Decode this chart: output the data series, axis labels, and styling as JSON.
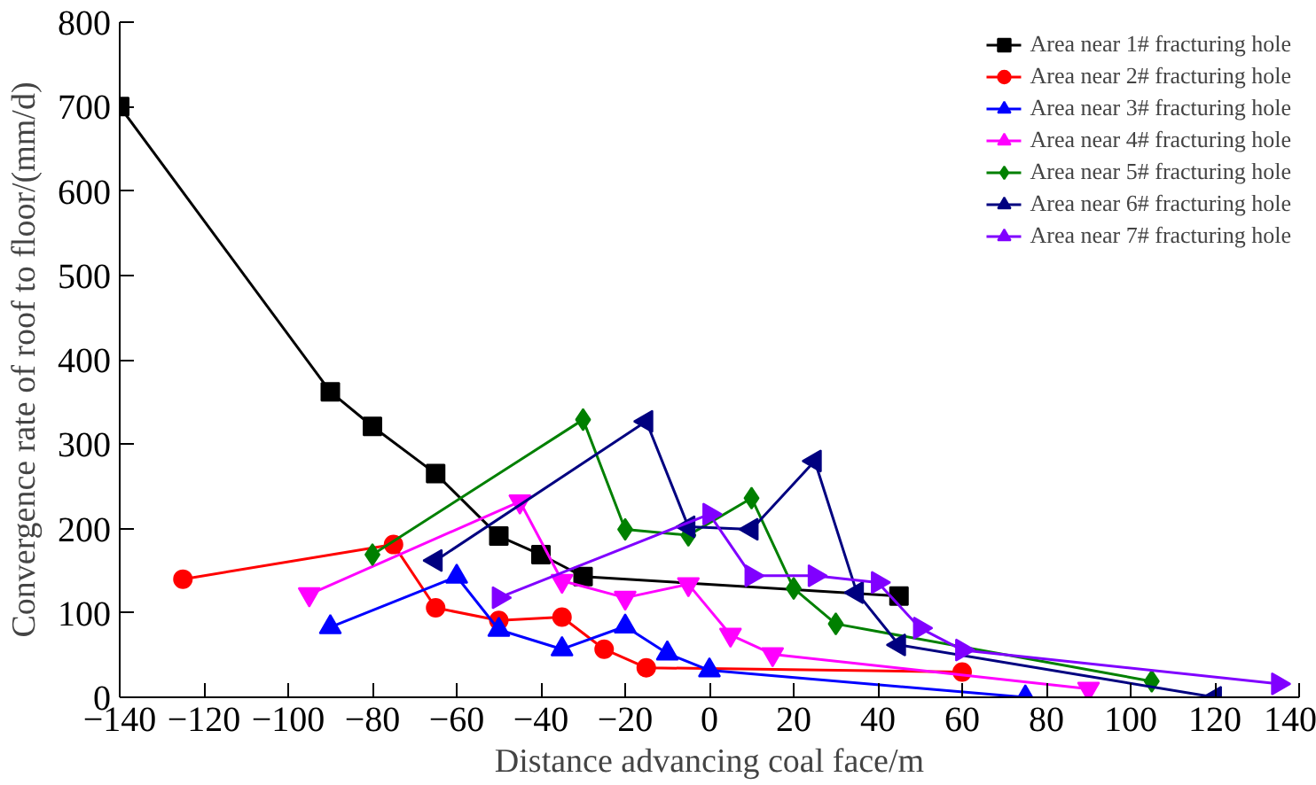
{
  "chart_data": {
    "type": "line",
    "xlabel": "Distance advancing coal face/m",
    "ylabel": "Convergence rate of roof to floor/(mm/d)",
    "xlim": [
      -140,
      140
    ],
    "ylim": [
      0,
      800
    ],
    "xticks": [
      -140,
      -120,
      -100,
      -80,
      -60,
      -40,
      -20,
      0,
      20,
      40,
      60,
      80,
      100,
      120,
      140
    ],
    "yticks": [
      0,
      100,
      200,
      300,
      400,
      500,
      600,
      700,
      800
    ],
    "grid": false,
    "legend": "top right",
    "series": [
      {
        "name": "Area near 1# fracturing hole",
        "color": "#000000",
        "marker": "square",
        "x": [
          -140,
          -90,
          -80,
          -65,
          -50,
          -40,
          -30,
          45
        ],
        "values": [
          700,
          362,
          321,
          265,
          191,
          169,
          143,
          120
        ]
      },
      {
        "name": "Area near 2# fracturing hole",
        "color": "#ff0000",
        "marker": "circle",
        "x": [
          -125,
          -75,
          -65,
          -50,
          -35,
          -25,
          -15,
          60
        ],
        "values": [
          140,
          181,
          106,
          91,
          95,
          57,
          35,
          30
        ]
      },
      {
        "name": "Area near 3# fracturing hole",
        "color": "#0000ff",
        "marker": "triangle",
        "x": [
          -90,
          -60,
          -50,
          -35,
          -20,
          -10,
          0,
          75
        ],
        "values": [
          83,
          143,
          80,
          57,
          84,
          52,
          32,
          0
        ]
      },
      {
        "name": "Area near 4# fracturing hole",
        "color": "#ff00ff",
        "marker": "triangle",
        "x": [
          -95,
          -45,
          -35,
          -20,
          -5,
          5,
          15,
          90
        ],
        "values": [
          122,
          232,
          138,
          118,
          134,
          74,
          51,
          10
        ]
      },
      {
        "name": "Area near 5# fracturing hole",
        "color": "#008000",
        "marker": "diamond",
        "x": [
          -80,
          -30,
          -20,
          -5,
          10,
          20,
          30,
          105
        ],
        "values": [
          169,
          329,
          199,
          192,
          236,
          129,
          87,
          19
        ]
      },
      {
        "name": "Area near 6# fracturing hole",
        "color": "#000080",
        "marker": "triangle",
        "x": [
          -65,
          -15,
          -5,
          10,
          25,
          35,
          45,
          120
        ],
        "values": [
          162,
          327,
          202,
          199,
          280,
          124,
          62,
          0
        ]
      },
      {
        "name": "Area near 7# fracturing hole",
        "color": "#8000ff",
        "marker": "triangle",
        "x": [
          -50,
          0,
          10,
          25,
          40,
          50,
          60,
          135
        ],
        "values": [
          118,
          217,
          144,
          144,
          136,
          82,
          56,
          16
        ]
      }
    ]
  }
}
